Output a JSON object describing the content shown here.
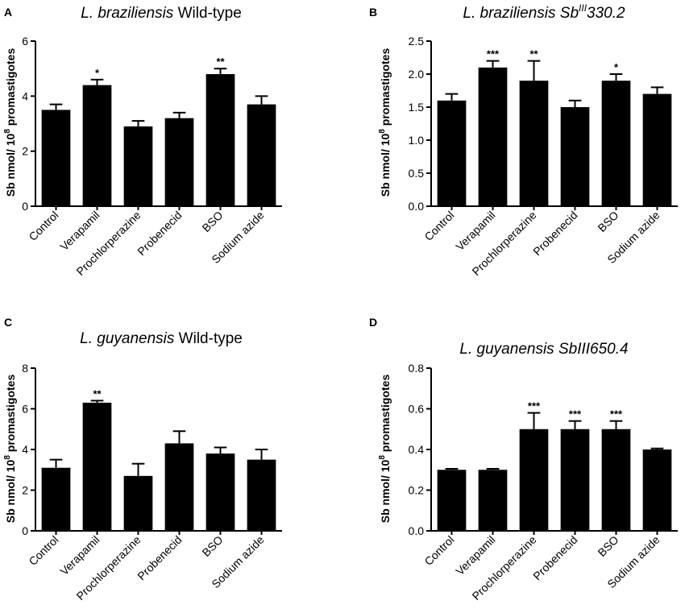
{
  "chart_data": [
    {
      "panel": "A",
      "type": "bar",
      "title_italic": "L. braziliensis",
      "title_rest": " Wild-type",
      "title_sup": "",
      "title_after": "",
      "ylabel_main": "Sb nmol/ 10",
      "ylabel_sup": "8",
      "ylabel_rest": " promastigotes",
      "ylim": [
        0,
        6
      ],
      "yticks": [
        "0",
        "2",
        "4",
        "6"
      ],
      "categories": [
        "Control",
        "Verapamil",
        "Prochlorperazine",
        "Probenecid",
        "BSO",
        "Sodium azide"
      ],
      "values": [
        3.5,
        4.4,
        2.9,
        3.2,
        4.8,
        3.7
      ],
      "errors": [
        0.2,
        0.2,
        0.2,
        0.2,
        0.2,
        0.3
      ],
      "significance": [
        "",
        "*",
        "",
        "",
        "**",
        ""
      ]
    },
    {
      "panel": "B",
      "type": "bar",
      "title_italic": "L. braziliensis Sb",
      "title_rest": "",
      "title_sup": "III",
      "title_after": "330.2",
      "ylabel_main": "Sb nmol/ 10",
      "ylabel_sup": "8",
      "ylabel_rest": " promastigotes",
      "ylim": [
        0,
        2.5
      ],
      "yticks": [
        "0.0",
        "0.5",
        "1.0",
        "1.5",
        "2.0",
        "2.5"
      ],
      "categories": [
        "Control",
        "Verapamil",
        "Prochlorperazine",
        "Probenecid",
        "BSO",
        "Sodium azide"
      ],
      "values": [
        1.6,
        2.1,
        1.9,
        1.5,
        1.9,
        1.7
      ],
      "errors": [
        0.1,
        0.1,
        0.3,
        0.1,
        0.1,
        0.1
      ],
      "significance": [
        "",
        "***",
        "**",
        "",
        "*",
        ""
      ]
    },
    {
      "panel": "C",
      "type": "bar",
      "title_italic": "L. guyanensis",
      "title_rest": " Wild-type",
      "title_sup": "",
      "title_after": "",
      "ylabel_main": "Sb nmol/ 10",
      "ylabel_sup": "8",
      "ylabel_rest": " promastigotes",
      "ylim": [
        0,
        8
      ],
      "yticks": [
        "0",
        "2",
        "4",
        "6",
        "8"
      ],
      "categories": [
        "Control",
        "Verapamil",
        "Prochlorperazine",
        "Probenecid",
        "BSO",
        "Sodium azide"
      ],
      "values": [
        3.1,
        6.3,
        2.7,
        4.3,
        3.8,
        3.5
      ],
      "errors": [
        0.4,
        0.1,
        0.6,
        0.6,
        0.3,
        0.5
      ],
      "significance": [
        "",
        "**",
        "",
        "",
        "",
        ""
      ]
    },
    {
      "panel": "D",
      "type": "bar",
      "title_italic": "L. guyanensis SbIII650.4",
      "title_rest": "",
      "title_sup": "",
      "title_after": "",
      "ylabel_main": "Sb nmol/ 10",
      "ylabel_sup": "8",
      "ylabel_rest": " promastigotes",
      "ylim": [
        0,
        0.8
      ],
      "yticks": [
        "0.0",
        "0.2",
        "0.4",
        "0.6",
        "0.8"
      ],
      "categories": [
        "Control",
        "Verapamil",
        "Prochlorperazine",
        "Probenecid",
        "BSO",
        "Sodium azide"
      ],
      "values": [
        0.3,
        0.3,
        0.5,
        0.5,
        0.5,
        0.4
      ],
      "errors": [
        0.005,
        0.005,
        0.08,
        0.04,
        0.04,
        0.005
      ],
      "significance": [
        "",
        "",
        "***",
        "***",
        "***",
        ""
      ]
    }
  ]
}
